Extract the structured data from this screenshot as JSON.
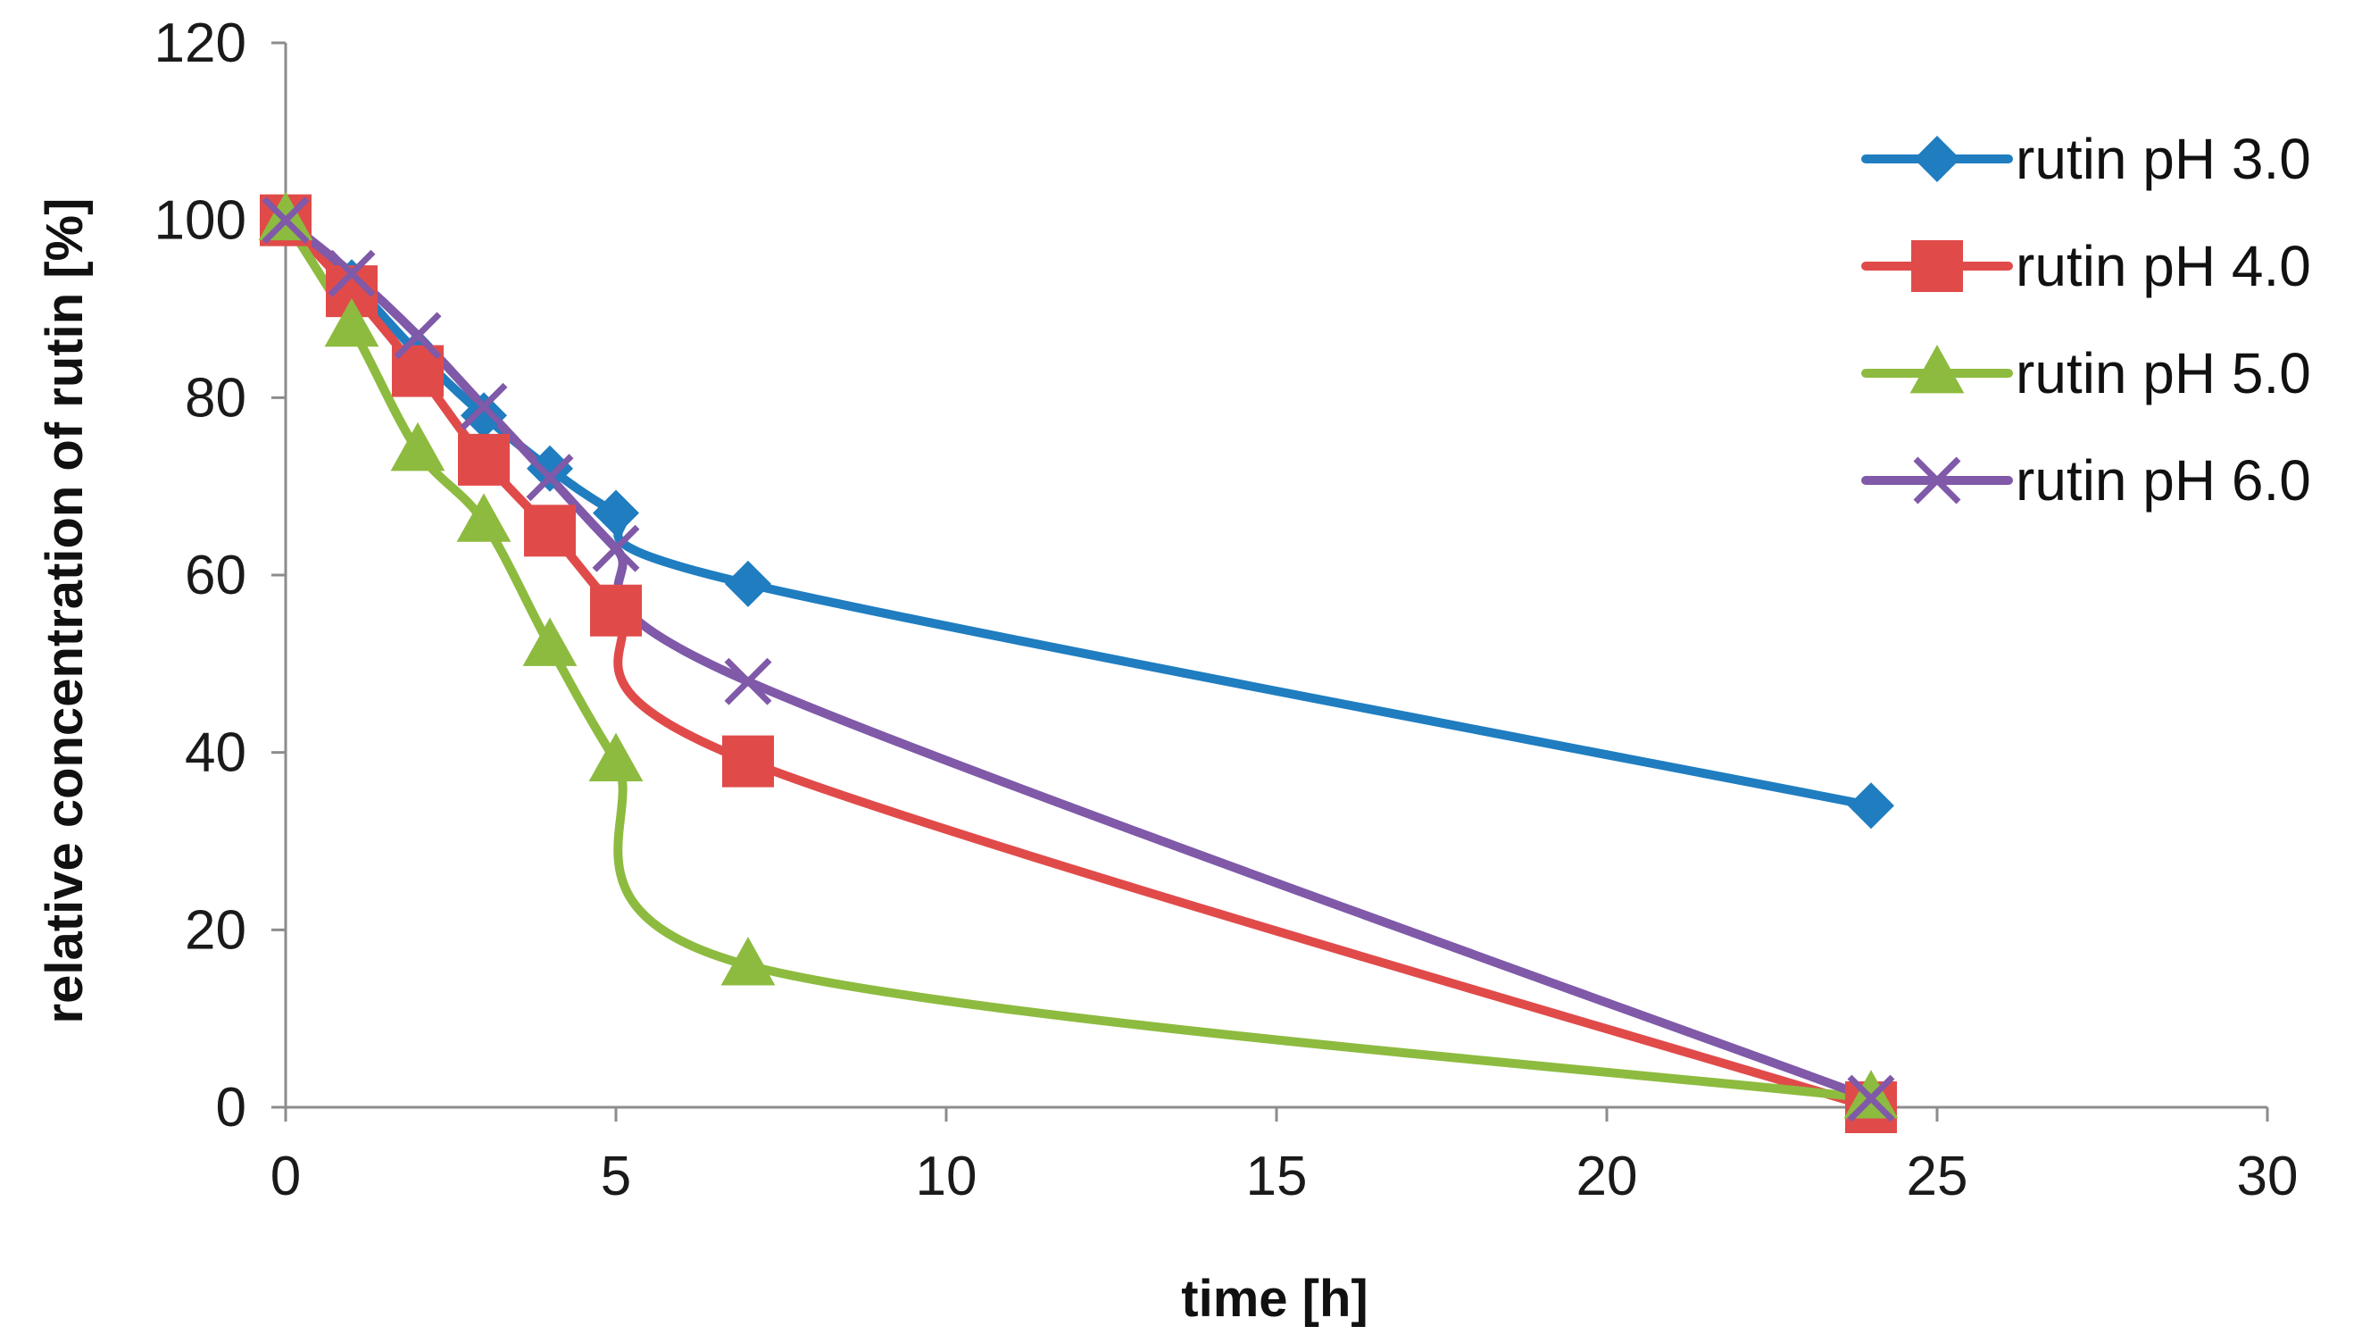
{
  "chart_data": {
    "type": "line",
    "title": "",
    "xlabel": "time [h]",
    "ylabel": "relative concentration of rutin [%]",
    "xlim": [
      0,
      30
    ],
    "ylim": [
      0,
      120
    ],
    "xticks": [
      0,
      5,
      10,
      15,
      20,
      25,
      30
    ],
    "yticks": [
      0,
      20,
      40,
      60,
      80,
      100,
      120
    ],
    "x_tick_labels": [
      "0",
      "5",
      "10",
      "15",
      "20",
      "25",
      "30"
    ],
    "y_tick_labels": [
      "0",
      "20",
      "40",
      "60",
      "80",
      "100",
      "120"
    ],
    "grid": false,
    "legend_position": "right",
    "series": [
      {
        "name": "rutin pH 3.0",
        "color": "#1f7dc0",
        "marker": "diamond",
        "x": [
          0,
          1,
          2,
          3,
          4,
          5,
          7,
          24
        ],
        "y": [
          100,
          93,
          85,
          78,
          72,
          67,
          59,
          34
        ]
      },
      {
        "name": "rutin pH 4.0",
        "color": "#e04b4a",
        "marker": "square",
        "x": [
          0,
          1,
          2,
          3,
          4,
          5,
          7,
          24
        ],
        "y": [
          100,
          92,
          83,
          73,
          65,
          56,
          39,
          0
        ]
      },
      {
        "name": "rutin pH 5.0",
        "color": "#8dbb3f",
        "marker": "triangle",
        "x": [
          0,
          1,
          2,
          3,
          4,
          5,
          7,
          24
        ],
        "y": [
          100,
          88,
          74,
          66,
          52,
          39,
          16,
          1
        ]
      },
      {
        "name": "rutin pH 6.0",
        "color": "#8059a8",
        "marker": "x",
        "x": [
          0,
          1,
          2,
          3,
          4,
          5,
          7,
          24
        ],
        "y": [
          100,
          94,
          87,
          79,
          71,
          63,
          48,
          1
        ]
      }
    ]
  }
}
